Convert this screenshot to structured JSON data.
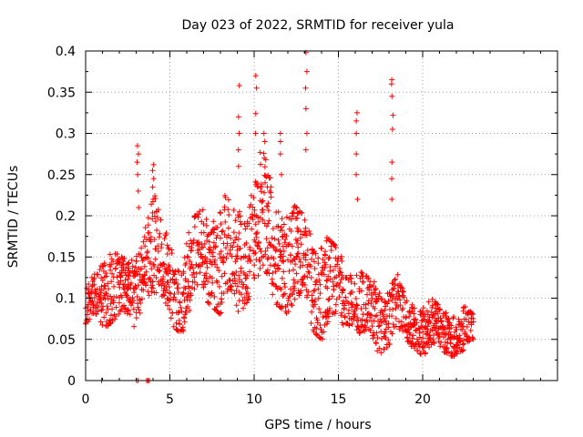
{
  "chart_data": {
    "type": "scatter",
    "title": "Day 023 of 2022, SRMTID for receiver yula",
    "xlabel": "GPS time / hours",
    "ylabel": "SRMTID / TECUs",
    "xlim": [
      0,
      28
    ],
    "ylim": [
      0,
      0.4
    ],
    "xticks": [
      0,
      5,
      10,
      15,
      20
    ],
    "yticks": [
      0,
      0.05,
      0.1,
      0.15,
      0.2,
      0.25,
      0.3,
      0.35,
      0.4
    ],
    "ytick_labels": [
      "0",
      "0.05",
      "0.1",
      "0.15",
      "0.2",
      "0.25",
      "0.3",
      "0.35",
      "0.4"
    ],
    "grid": true,
    "marker": "+",
    "color": "#ff0000",
    "envelope_hours": [
      0,
      0.5,
      1,
      1.5,
      2,
      2.5,
      3,
      3.5,
      4,
      4.5,
      5,
      5.5,
      6,
      6.5,
      7,
      7.5,
      8,
      8.5,
      9,
      9.5,
      10,
      10.5,
      11,
      11.5,
      12,
      12.5,
      13,
      13.5,
      14,
      14.5,
      15,
      15.5,
      16,
      16.5,
      17,
      17.5,
      18,
      18.5,
      19,
      19.5,
      20,
      20.5,
      21,
      21.5,
      22,
      22.5,
      23
    ],
    "envelope_low": [
      0.06,
      0.07,
      0.06,
      0.07,
      0.08,
      0.06,
      0.05,
      0.12,
      0.09,
      0.08,
      0.07,
      0.06,
      0.06,
      0.09,
      0.1,
      0.09,
      0.08,
      0.08,
      0.07,
      0.09,
      0.12,
      0.1,
      0.09,
      0.09,
      0.08,
      0.07,
      0.09,
      0.06,
      0.05,
      0.05,
      0.06,
      0.07,
      0.06,
      0.04,
      0.04,
      0.03,
      0.04,
      0.05,
      0.04,
      0.04,
      0.03,
      0.03,
      0.03,
      0.03,
      0.03,
      0.03,
      0.04
    ],
    "envelope_high": [
      0.11,
      0.13,
      0.15,
      0.18,
      0.16,
      0.14,
      0.16,
      0.2,
      0.24,
      0.19,
      0.17,
      0.17,
      0.18,
      0.2,
      0.21,
      0.22,
      0.23,
      0.22,
      0.21,
      0.22,
      0.27,
      0.28,
      0.25,
      0.23,
      0.22,
      0.21,
      0.2,
      0.19,
      0.18,
      0.17,
      0.16,
      0.15,
      0.14,
      0.13,
      0.12,
      0.12,
      0.13,
      0.13,
      0.1,
      0.1,
      0.1,
      0.1,
      0.09,
      0.09,
      0.09,
      0.09,
      0.08
    ],
    "spikes": [
      {
        "hour": 3.1,
        "values": [
          0.21,
          0.23,
          0.25,
          0.265,
          0.275,
          0.285
        ]
      },
      {
        "hour": 4.0,
        "values": [
          0.22,
          0.235,
          0.245,
          0.255,
          0.262
        ]
      },
      {
        "hour": 9.1,
        "values": [
          0.26,
          0.28,
          0.3,
          0.32,
          0.358
        ]
      },
      {
        "hour": 10.1,
        "values": [
          0.3,
          0.324,
          0.355,
          0.37
        ]
      },
      {
        "hour": 10.6,
        "values": [
          0.24,
          0.27,
          0.29,
          0.3
        ]
      },
      {
        "hour": 11.6,
        "values": [
          0.25,
          0.275,
          0.29,
          0.3
        ]
      },
      {
        "hour": 13.1,
        "values": [
          0.28,
          0.3,
          0.33,
          0.355,
          0.375,
          0.398
        ]
      },
      {
        "hour": 16.1,
        "values": [
          0.22,
          0.25,
          0.275,
          0.3,
          0.315,
          0.325
        ]
      },
      {
        "hour": 18.2,
        "values": [
          0.22,
          0.245,
          0.265,
          0.305,
          0.322,
          0.345,
          0.36,
          0.365
        ]
      }
    ],
    "zero_points": [
      0.95,
      3.02,
      3.12,
      3.62,
      3.7,
      3.78
    ]
  }
}
